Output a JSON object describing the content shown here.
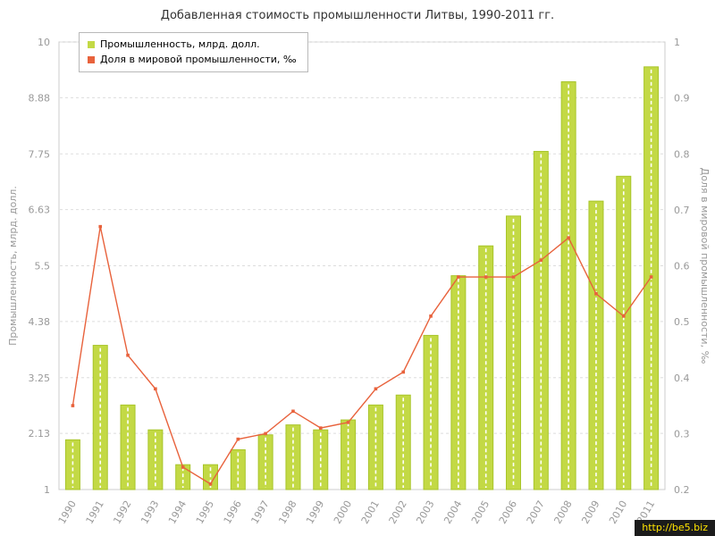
{
  "title": "Добавленная стоимость промышленности Литвы, 1990-2011 гг.",
  "watermark": "http://be5.biz",
  "colors": {
    "bar_fill": "#c3d945",
    "bar_stroke": "#a8c52a",
    "line": "#e8623c",
    "grid": "#dddddd",
    "plot_border": "#cccccc",
    "tick_text": "#999999"
  },
  "chart_data": {
    "type": "bar",
    "categories": [
      "1990",
      "1991",
      "1992",
      "1993",
      "1994",
      "1995",
      "1996",
      "1997",
      "1998",
      "1999",
      "2000",
      "2001",
      "2002",
      "2003",
      "2004",
      "2005",
      "2006",
      "2007",
      "2008",
      "2009",
      "2010",
      "2011"
    ],
    "series": [
      {
        "name": "Промышленность, млрд. долл.",
        "type": "bar",
        "axis": "left",
        "color": "#c3d945",
        "stroke": "#a8c52a",
        "values": [
          2.0,
          3.9,
          2.7,
          2.2,
          1.5,
          1.5,
          1.8,
          2.1,
          2.3,
          2.2,
          2.4,
          2.7,
          2.9,
          4.1,
          5.3,
          5.9,
          6.5,
          7.8,
          9.2,
          6.8,
          7.3,
          9.5
        ]
      },
      {
        "name": "Доля в мировой промышленности, ‰",
        "type": "line",
        "axis": "right",
        "color": "#e8623c",
        "values": [
          0.35,
          0.67,
          0.44,
          0.38,
          0.24,
          0.21,
          0.29,
          0.3,
          0.34,
          0.31,
          0.32,
          0.38,
          0.41,
          0.51,
          0.58,
          0.58,
          0.58,
          0.61,
          0.65,
          0.55,
          0.51,
          0.58
        ]
      }
    ],
    "left_axis": {
      "label": "Промышленность, млрд. долл.",
      "min": 1,
      "max": 10,
      "ticks": [
        1,
        2.13,
        3.25,
        4.38,
        5.5,
        6.63,
        7.75,
        8.88,
        10
      ]
    },
    "right_axis": {
      "label": "Доля в мировой промышленности, ‰",
      "min": 0.2,
      "max": 1,
      "ticks": [
        0.2,
        0.3,
        0.4,
        0.5,
        0.6,
        0.7,
        0.8,
        0.9,
        1
      ]
    },
    "grid": "horizontal-dashed",
    "legend_position": "top-left"
  }
}
